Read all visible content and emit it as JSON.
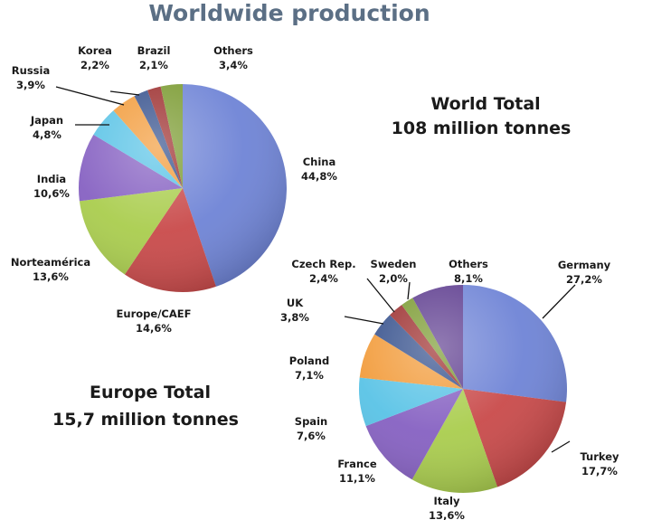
{
  "title": "Worldwide production",
  "chart_data": [
    {
      "type": "pie",
      "name": "World",
      "total_line1": "World Total",
      "total_line2": "108 million tonnes",
      "slices": [
        {
          "label": "China",
          "value_text": "44,8%",
          "value": 44.8,
          "color": "#6f84d6"
        },
        {
          "label": "Europe/CAEF",
          "value_text": "14,6%",
          "value": 14.6,
          "color": "#c94a4a"
        },
        {
          "label": "Norteamérica",
          "value_text": "13,6%",
          "value": 13.6,
          "color": "#aacd4e"
        },
        {
          "label": "India",
          "value_text": "10,6%",
          "value": 10.6,
          "color": "#8661c2"
        },
        {
          "label": "Japan",
          "value_text": "4,8%",
          "value": 4.8,
          "color": "#59c3e6"
        },
        {
          "label": "Russia",
          "value_text": "3,9%",
          "value": 3.9,
          "color": "#f29b3a"
        },
        {
          "label": "Korea",
          "value_text": "2,2%",
          "value": 2.2,
          "color": "#35508c"
        },
        {
          "label": "Brazil",
          "value_text": "2,1%",
          "value": 2.1,
          "color": "#9c2e2e"
        },
        {
          "label": "Others",
          "value_text": "3,4%",
          "value": 3.4,
          "color": "#7a9a30"
        }
      ]
    },
    {
      "type": "pie",
      "name": "Europe",
      "total_line1": "Europe Total",
      "total_line2": "15,7 million tonnes",
      "slices": [
        {
          "label": "Germany",
          "value_text": "27,2%",
          "value": 27.2,
          "color": "#6f84d6"
        },
        {
          "label": "Turkey",
          "value_text": "17,7%",
          "value": 17.7,
          "color": "#c94a4a"
        },
        {
          "label": "Italy",
          "value_text": "13,6%",
          "value": 13.6,
          "color": "#aacd4e"
        },
        {
          "label": "France",
          "value_text": "11,1%",
          "value": 11.1,
          "color": "#8661c2"
        },
        {
          "label": "Spain",
          "value_text": "7,6%",
          "value": 7.6,
          "color": "#59c3e6"
        },
        {
          "label": "Poland",
          "value_text": "7,1%",
          "value": 7.1,
          "color": "#f29b3a"
        },
        {
          "label": "UK",
          "value_text": "3,8%",
          "value": 3.8,
          "color": "#35508c"
        },
        {
          "label": "Czech Rep.",
          "value_text": "2,4%",
          "value": 2.4,
          "color": "#9c2e2e"
        },
        {
          "label": "Sweden",
          "value_text": "2,0%",
          "value": 2.0,
          "color": "#7a9a30"
        },
        {
          "label": "Others",
          "value_text": "8,1%",
          "value": 8.1,
          "color": "#5e3d8f"
        }
      ]
    }
  ]
}
